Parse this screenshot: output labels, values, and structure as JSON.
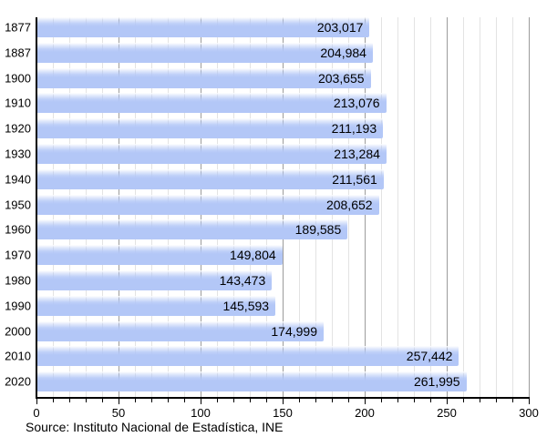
{
  "chart_data": {
    "type": "bar",
    "orientation": "horizontal",
    "title": "",
    "xlabel": "",
    "ylabel": "",
    "categories": [
      "1877",
      "1887",
      "1900",
      "1910",
      "1920",
      "1930",
      "1940",
      "1950",
      "1960",
      "1970",
      "1980",
      "1990",
      "2000",
      "2010",
      "2020"
    ],
    "values": [
      203017,
      204984,
      203655,
      213076,
      211193,
      213284,
      211561,
      208652,
      189585,
      149804,
      143473,
      145593,
      174999,
      257442,
      261995
    ],
    "value_labels": [
      "203,017",
      "204,984",
      "203,655",
      "213,076",
      "211,193",
      "213,284",
      "211,561",
      "208,652",
      "189,585",
      "149,804",
      "143,473",
      "145,593",
      "174,999",
      "257,442",
      "261,995"
    ],
    "x_axis": {
      "min": 0,
      "max": 300,
      "unit_divisor": 1000,
      "minor_step": 10,
      "major_step": 50,
      "tick_labels": [
        "0",
        "50",
        "100",
        "150",
        "200",
        "250",
        "300"
      ]
    },
    "grid": "vertical gridlines, minor every 10 (light gray), major every 50 (dark gray)",
    "legend": false
  },
  "source_note": "Source: Instituto Nacional de Estadística, INE",
  "colors": {
    "bar_fill": "#b3c7f7",
    "bar_highlight": "#ffffff",
    "grid_minor": "#e3e3e3",
    "grid_major": "#9c9c9c",
    "axis": "#000000",
    "text": "#000000",
    "background": "#ffffff"
  }
}
